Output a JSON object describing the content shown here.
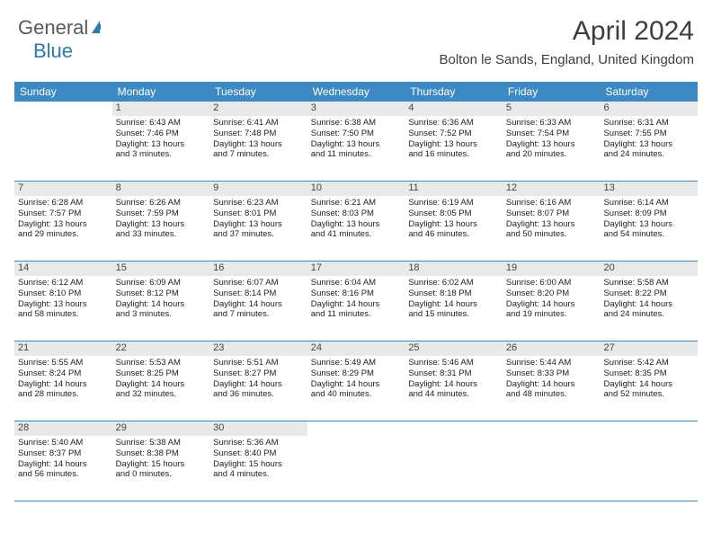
{
  "logo": {
    "text1": "General",
    "text2": "Blue"
  },
  "title": "April 2024",
  "location": "Bolton le Sands, England, United Kingdom",
  "day_headers": [
    "Sunday",
    "Monday",
    "Tuesday",
    "Wednesday",
    "Thursday",
    "Friday",
    "Saturday"
  ],
  "colors": {
    "header_bg": "#3c89c3",
    "text": "#222222",
    "daynum_bg": "#e9e9e9",
    "border": "#3c89c3"
  },
  "weeks": [
    [
      {
        "blank": true
      },
      {
        "n": "1",
        "sr": "Sunrise: 6:43 AM",
        "ss": "Sunset: 7:46 PM",
        "d1": "Daylight: 13 hours",
        "d2": "and 3 minutes."
      },
      {
        "n": "2",
        "sr": "Sunrise: 6:41 AM",
        "ss": "Sunset: 7:48 PM",
        "d1": "Daylight: 13 hours",
        "d2": "and 7 minutes."
      },
      {
        "n": "3",
        "sr": "Sunrise: 6:38 AM",
        "ss": "Sunset: 7:50 PM",
        "d1": "Daylight: 13 hours",
        "d2": "and 11 minutes."
      },
      {
        "n": "4",
        "sr": "Sunrise: 6:36 AM",
        "ss": "Sunset: 7:52 PM",
        "d1": "Daylight: 13 hours",
        "d2": "and 16 minutes."
      },
      {
        "n": "5",
        "sr": "Sunrise: 6:33 AM",
        "ss": "Sunset: 7:54 PM",
        "d1": "Daylight: 13 hours",
        "d2": "and 20 minutes."
      },
      {
        "n": "6",
        "sr": "Sunrise: 6:31 AM",
        "ss": "Sunset: 7:55 PM",
        "d1": "Daylight: 13 hours",
        "d2": "and 24 minutes."
      }
    ],
    [
      {
        "n": "7",
        "sr": "Sunrise: 6:28 AM",
        "ss": "Sunset: 7:57 PM",
        "d1": "Daylight: 13 hours",
        "d2": "and 29 minutes."
      },
      {
        "n": "8",
        "sr": "Sunrise: 6:26 AM",
        "ss": "Sunset: 7:59 PM",
        "d1": "Daylight: 13 hours",
        "d2": "and 33 minutes."
      },
      {
        "n": "9",
        "sr": "Sunrise: 6:23 AM",
        "ss": "Sunset: 8:01 PM",
        "d1": "Daylight: 13 hours",
        "d2": "and 37 minutes."
      },
      {
        "n": "10",
        "sr": "Sunrise: 6:21 AM",
        "ss": "Sunset: 8:03 PM",
        "d1": "Daylight: 13 hours",
        "d2": "and 41 minutes."
      },
      {
        "n": "11",
        "sr": "Sunrise: 6:19 AM",
        "ss": "Sunset: 8:05 PM",
        "d1": "Daylight: 13 hours",
        "d2": "and 46 minutes."
      },
      {
        "n": "12",
        "sr": "Sunrise: 6:16 AM",
        "ss": "Sunset: 8:07 PM",
        "d1": "Daylight: 13 hours",
        "d2": "and 50 minutes."
      },
      {
        "n": "13",
        "sr": "Sunrise: 6:14 AM",
        "ss": "Sunset: 8:09 PM",
        "d1": "Daylight: 13 hours",
        "d2": "and 54 minutes."
      }
    ],
    [
      {
        "n": "14",
        "sr": "Sunrise: 6:12 AM",
        "ss": "Sunset: 8:10 PM",
        "d1": "Daylight: 13 hours",
        "d2": "and 58 minutes."
      },
      {
        "n": "15",
        "sr": "Sunrise: 6:09 AM",
        "ss": "Sunset: 8:12 PM",
        "d1": "Daylight: 14 hours",
        "d2": "and 3 minutes."
      },
      {
        "n": "16",
        "sr": "Sunrise: 6:07 AM",
        "ss": "Sunset: 8:14 PM",
        "d1": "Daylight: 14 hours",
        "d2": "and 7 minutes."
      },
      {
        "n": "17",
        "sr": "Sunrise: 6:04 AM",
        "ss": "Sunset: 8:16 PM",
        "d1": "Daylight: 14 hours",
        "d2": "and 11 minutes."
      },
      {
        "n": "18",
        "sr": "Sunrise: 6:02 AM",
        "ss": "Sunset: 8:18 PM",
        "d1": "Daylight: 14 hours",
        "d2": "and 15 minutes."
      },
      {
        "n": "19",
        "sr": "Sunrise: 6:00 AM",
        "ss": "Sunset: 8:20 PM",
        "d1": "Daylight: 14 hours",
        "d2": "and 19 minutes."
      },
      {
        "n": "20",
        "sr": "Sunrise: 5:58 AM",
        "ss": "Sunset: 8:22 PM",
        "d1": "Daylight: 14 hours",
        "d2": "and 24 minutes."
      }
    ],
    [
      {
        "n": "21",
        "sr": "Sunrise: 5:55 AM",
        "ss": "Sunset: 8:24 PM",
        "d1": "Daylight: 14 hours",
        "d2": "and 28 minutes."
      },
      {
        "n": "22",
        "sr": "Sunrise: 5:53 AM",
        "ss": "Sunset: 8:25 PM",
        "d1": "Daylight: 14 hours",
        "d2": "and 32 minutes."
      },
      {
        "n": "23",
        "sr": "Sunrise: 5:51 AM",
        "ss": "Sunset: 8:27 PM",
        "d1": "Daylight: 14 hours",
        "d2": "and 36 minutes."
      },
      {
        "n": "24",
        "sr": "Sunrise: 5:49 AM",
        "ss": "Sunset: 8:29 PM",
        "d1": "Daylight: 14 hours",
        "d2": "and 40 minutes."
      },
      {
        "n": "25",
        "sr": "Sunrise: 5:46 AM",
        "ss": "Sunset: 8:31 PM",
        "d1": "Daylight: 14 hours",
        "d2": "and 44 minutes."
      },
      {
        "n": "26",
        "sr": "Sunrise: 5:44 AM",
        "ss": "Sunset: 8:33 PM",
        "d1": "Daylight: 14 hours",
        "d2": "and 48 minutes."
      },
      {
        "n": "27",
        "sr": "Sunrise: 5:42 AM",
        "ss": "Sunset: 8:35 PM",
        "d1": "Daylight: 14 hours",
        "d2": "and 52 minutes."
      }
    ],
    [
      {
        "n": "28",
        "sr": "Sunrise: 5:40 AM",
        "ss": "Sunset: 8:37 PM",
        "d1": "Daylight: 14 hours",
        "d2": "and 56 minutes."
      },
      {
        "n": "29",
        "sr": "Sunrise: 5:38 AM",
        "ss": "Sunset: 8:38 PM",
        "d1": "Daylight: 15 hours",
        "d2": "and 0 minutes."
      },
      {
        "n": "30",
        "sr": "Sunrise: 5:36 AM",
        "ss": "Sunset: 8:40 PM",
        "d1": "Daylight: 15 hours",
        "d2": "and 4 minutes."
      },
      {
        "blank": true
      },
      {
        "blank": true
      },
      {
        "blank": true
      },
      {
        "blank": true
      }
    ]
  ]
}
